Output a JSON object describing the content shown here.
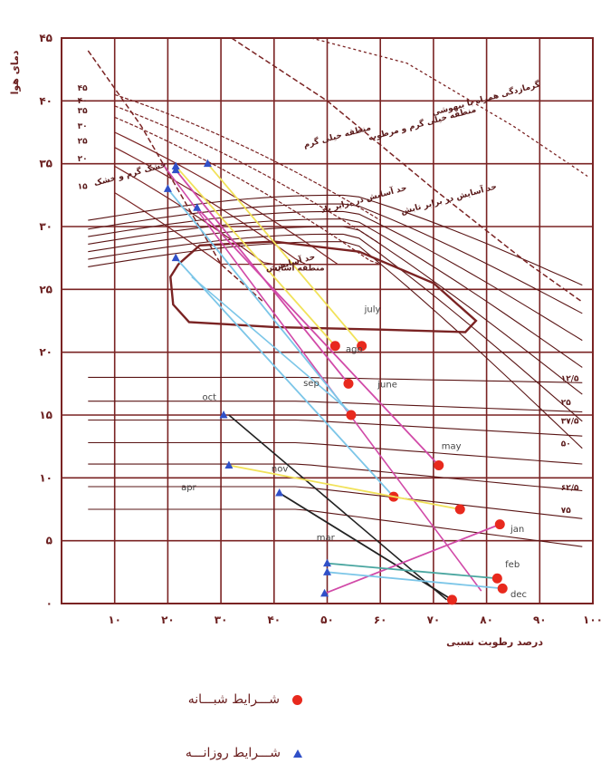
{
  "chart_data": {
    "type": "scatter",
    "xlabel": "درصد رطوبت نسبی",
    "ylabel": "دمای هوا",
    "xlim": [
      0,
      100
    ],
    "ylim": [
      0,
      45
    ],
    "x_ticks": [
      "۱۰",
      "۲۰",
      "۳۰",
      "۴۰",
      "۵۰",
      "۶۰",
      "۷۰",
      "۸۰",
      "۹۰",
      "۱۰۰"
    ],
    "x_tick_values": [
      10,
      20,
      30,
      40,
      50,
      60,
      70,
      80,
      90,
      100
    ],
    "y_ticks": [
      "۰",
      "۵",
      "۱۰",
      "۱۵",
      "۲۰",
      "۲۵",
      "۳۰",
      "۳۵",
      "۴۰",
      "۴۵"
    ],
    "y_tick_values": [
      0,
      5,
      10,
      15,
      20,
      25,
      30,
      35,
      40,
      45
    ],
    "grid": true,
    "comfort_zone_label": "منطقه آسایش",
    "zone_labels": [
      {
        "text": "خشک گرم و خشک",
        "x": 13,
        "y": 34
      },
      {
        "text": "منطقه خیلی گرم",
        "x": 52,
        "y": 37
      },
      {
        "text": "منطقه خیلی گرم و مرطوب",
        "x": 68,
        "y": 38
      },
      {
        "text": "گرمازدگی همراه با بیهوشی",
        "x": 80,
        "y": 40
      },
      {
        "text": "حد آسایش در برابر باد",
        "x": 57,
        "y": 32
      },
      {
        "text": "حد آسایش در برابر تابش",
        "x": 73,
        "y": 32
      },
      {
        "text": "حد آسایش",
        "x": 44,
        "y": 27
      }
    ],
    "left_curve_labels": [
      {
        "text": "۴۵",
        "y": 40.8
      },
      {
        "text": "۴۰",
        "y": 39.8
      },
      {
        "text": "۳۵",
        "y": 39.0
      },
      {
        "text": "۳۰",
        "y": 37.8
      },
      {
        "text": "۲۵",
        "y": 36.6
      },
      {
        "text": "۲۰",
        "y": 35.2
      },
      {
        "text": "۱۵",
        "y": 33.0
      }
    ],
    "right_curve_labels": [
      {
        "text": "۱۲/۵",
        "y": 17.7
      },
      {
        "text": "۲۵",
        "y": 15.8
      },
      {
        "text": "۳۷/۵",
        "y": 14.3
      },
      {
        "text": "۵۰",
        "y": 12.5
      },
      {
        "text": "۶۲/۵",
        "y": 9.0
      },
      {
        "text": "۷۵",
        "y": 7.2
      }
    ],
    "months": [
      {
        "name": "july",
        "label_x": 57,
        "label_y": 23.2,
        "night": [
          56.5,
          20.5
        ],
        "day": [
          27.5,
          35.0
        ],
        "color": "#f1e25a"
      },
      {
        "name": "ago",
        "label_x": 53.5,
        "label_y": 20.0,
        "night": [
          51.5,
          20.5
        ],
        "day": [
          21.5,
          34.8
        ],
        "color": "#f1e25a"
      },
      {
        "name": "sep",
        "label_x": 45.5,
        "label_y": 17.3,
        "night": [
          54.5,
          15.0
        ],
        "day": [
          20.0,
          33.0
        ],
        "color": "#7cc6e8"
      },
      {
        "name": "june",
        "label_x": 59.5,
        "label_y": 17.2,
        "night": [
          54.0,
          17.5
        ],
        "day": [
          21.5,
          34.5
        ],
        "color": "#d14aa8"
      },
      {
        "name": "may",
        "label_x": 71.5,
        "label_y": 12.3,
        "night": [
          71.0,
          11.0
        ],
        "day": [
          25.5,
          31.5
        ],
        "color": "#d14aa8"
      },
      {
        "name": "oct",
        "label_x": 26.5,
        "label_y": 16.2,
        "night": null,
        "day": [
          30.5,
          15.0
        ],
        "color": "#222222"
      },
      {
        "name": "nov",
        "label_x": 39.5,
        "label_y": 10.5,
        "night": [
          62.5,
          8.5
        ],
        "day": [
          21.5,
          27.5
        ],
        "color": "#7cc6e8"
      },
      {
        "name": "apr",
        "label_x": 22.5,
        "label_y": 9.0,
        "night": [
          75.0,
          7.5
        ],
        "day": [
          31.5,
          11.0
        ],
        "color": "#f1e25a"
      },
      {
        "name": "mar",
        "label_x": 48.0,
        "label_y": 5.0,
        "night": [
          73.5,
          0.3
        ],
        "day": [
          41.0,
          8.8
        ],
        "color": "#222222"
      },
      {
        "name": "jan",
        "label_x": 84.5,
        "label_y": 5.7,
        "night": [
          82.5,
          6.3
        ],
        "day": [
          49.5,
          0.8
        ],
        "color": "#d14aa8"
      },
      {
        "name": "feb",
        "label_x": 83.5,
        "label_y": 2.9,
        "night": [
          82.0,
          2.0
        ],
        "day": [
          50.0,
          3.2
        ],
        "color": "#4aa6a0"
      },
      {
        "name": "dec",
        "label_x": 84.5,
        "label_y": 0.5,
        "night": [
          83.0,
          1.2
        ],
        "day": [
          50.0,
          2.5
        ],
        "color": "#7cc6e8"
      }
    ],
    "extra_lines": [
      {
        "from": [
          31.5,
          15.0
        ],
        "to": [
          72.5,
          0.3
        ],
        "color": "#222222"
      },
      {
        "from": [
          19.0,
          35.0
        ],
        "to": [
          79.0,
          1.0
        ],
        "color": "#d14aa8"
      },
      {
        "from": [
          24.5,
          26.0
        ],
        "to": [
          55.0,
          15.0
        ],
        "color": "#7cc6e8"
      }
    ]
  },
  "legend": {
    "night_label": "شـــرایط شبـــانه",
    "day_label": "شـــرایط روزانـــه",
    "night_color": "#e8291d",
    "day_color": "#3050c8"
  }
}
